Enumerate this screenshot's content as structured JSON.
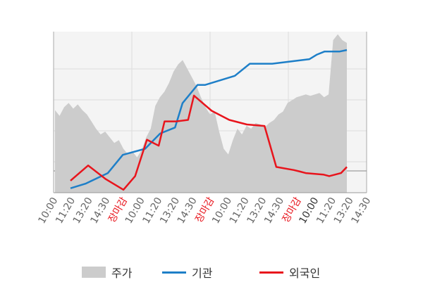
{
  "chart_data": {
    "type": "line",
    "grid": true,
    "x_tick_labels": [
      {
        "text": "10:00",
        "style": "normal"
      },
      {
        "text": "11:20",
        "style": "normal"
      },
      {
        "text": "13:20",
        "style": "normal"
      },
      {
        "text": "14:30",
        "style": "normal"
      },
      {
        "text": "장마감",
        "style": "close"
      },
      {
        "text": "10:00",
        "style": "normal"
      },
      {
        "text": "11:20",
        "style": "normal"
      },
      {
        "text": "13:20",
        "style": "normal"
      },
      {
        "text": "14:30",
        "style": "normal"
      },
      {
        "text": "장마감",
        "style": "close"
      },
      {
        "text": "10:00",
        "style": "normal"
      },
      {
        "text": "11:20",
        "style": "normal"
      },
      {
        "text": "13:20",
        "style": "normal"
      },
      {
        "text": "14:30",
        "style": "normal"
      },
      {
        "text": "장마감",
        "style": "close"
      },
      {
        "text": "10:00",
        "style": "strong"
      },
      {
        "text": "11:20",
        "style": "normal"
      },
      {
        "text": "13:20",
        "style": "normal"
      },
      {
        "text": "14:30",
        "style": "normal"
      }
    ],
    "price_area": {
      "name": "주가",
      "color": "#cccccc",
      "points": [
        [
          0,
          43
        ],
        [
          0.5,
          39
        ],
        [
          1,
          45
        ],
        [
          1.5,
          48
        ],
        [
          2,
          44
        ],
        [
          2.5,
          47
        ],
        [
          3,
          43
        ],
        [
          3.5,
          40
        ],
        [
          4,
          35
        ],
        [
          4.5,
          30
        ],
        [
          5,
          26
        ],
        [
          5.5,
          28
        ],
        [
          6,
          24
        ],
        [
          6.5,
          20
        ],
        [
          7,
          22
        ],
        [
          7.5,
          16
        ],
        [
          8,
          12
        ],
        [
          8.5,
          14
        ],
        [
          9,
          10
        ],
        [
          9.5,
          15
        ],
        [
          10,
          24
        ],
        [
          10.5,
          30
        ],
        [
          11,
          46
        ],
        [
          11.5,
          52
        ],
        [
          12,
          56
        ],
        [
          12.5,
          62
        ],
        [
          13,
          70
        ],
        [
          13.5,
          75
        ],
        [
          14,
          78
        ],
        [
          14.5,
          72
        ],
        [
          15,
          66
        ],
        [
          15.5,
          60
        ],
        [
          16,
          52
        ],
        [
          16.5,
          45
        ],
        [
          17,
          40
        ],
        [
          17.5,
          42
        ],
        [
          18,
          28
        ],
        [
          18.5,
          16
        ],
        [
          19,
          12
        ],
        [
          19.5,
          22
        ],
        [
          20,
          30
        ],
        [
          20.5,
          26
        ],
        [
          21,
          32
        ],
        [
          21.5,
          30
        ],
        [
          22,
          34
        ],
        [
          22.5,
          33
        ],
        [
          23,
          31
        ],
        [
          23.5,
          34
        ],
        [
          24,
          36
        ],
        [
          24.5,
          40
        ],
        [
          25,
          42
        ],
        [
          25.5,
          48
        ],
        [
          26,
          50
        ],
        [
          26.5,
          52
        ],
        [
          27,
          53
        ],
        [
          27.5,
          54
        ],
        [
          28,
          53
        ],
        [
          28.5,
          54
        ],
        [
          29,
          55
        ],
        [
          29.5,
          52
        ],
        [
          30,
          54
        ],
        [
          30.5,
          92
        ],
        [
          31,
          96
        ],
        [
          31.5,
          92
        ],
        [
          32,
          90
        ]
      ],
      "range": [
        0,
        100
      ]
    },
    "series": [
      {
        "name": "기관",
        "color": "#1e7fc8",
        "points": [
          [
            0,
            2
          ],
          [
            2,
            5
          ],
          [
            5,
            12
          ],
          [
            7,
            24
          ],
          [
            10,
            28
          ],
          [
            12,
            38
          ],
          [
            14,
            42
          ],
          [
            15,
            58
          ],
          [
            17,
            70
          ],
          [
            18,
            70
          ],
          [
            20,
            73
          ],
          [
            22,
            76
          ],
          [
            24,
            84
          ],
          [
            27,
            84
          ],
          [
            32,
            87
          ],
          [
            33,
            90
          ],
          [
            34,
            92
          ],
          [
            36,
            92
          ],
          [
            37,
            93
          ]
        ],
        "range": [
          0,
          100
        ]
      },
      {
        "name": "외국인",
        "color": "#e8141c",
        "points": [
          [
            0,
            7
          ],
          [
            3,
            17
          ],
          [
            6,
            8
          ],
          [
            9,
            1
          ],
          [
            11,
            10
          ],
          [
            13,
            34
          ],
          [
            15,
            30
          ],
          [
            16,
            46
          ],
          [
            18,
            46
          ],
          [
            20,
            47
          ],
          [
            21,
            63
          ],
          [
            24,
            53
          ],
          [
            27,
            47
          ],
          [
            30,
            44
          ],
          [
            33,
            43
          ],
          [
            35,
            16
          ],
          [
            38,
            14
          ],
          [
            39,
            13
          ],
          [
            40,
            12
          ],
          [
            43,
            11
          ],
          [
            44,
            10
          ],
          [
            46,
            12
          ],
          [
            47,
            16
          ]
        ],
        "range": [
          0,
          100
        ]
      }
    ]
  },
  "legend": {
    "items": [
      {
        "label": "주가"
      },
      {
        "label": "기관"
      },
      {
        "label": "외국인"
      }
    ]
  }
}
